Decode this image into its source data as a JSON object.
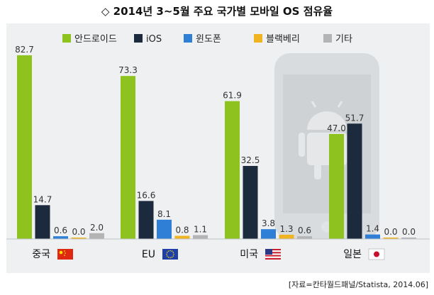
{
  "title": "◇ 2014년 3~5월 주요 국가별 모바일 OS 점유율",
  "source": "[자료=칸타월드패널/Statista, 2014.06]",
  "colors": {
    "background_panel": "#eef0f2",
    "android": "#8dc21f",
    "ios": "#1b2a3d",
    "windows": "#2f7fd6",
    "blackberry": "#f0b423",
    "other": "#b4b4b4"
  },
  "chart_data": {
    "type": "bar",
    "title": "2014년 3~5월 주요 국가별 모바일 OS 점유율",
    "categories": [
      "중국",
      "EU",
      "미국",
      "일본"
    ],
    "category_flags": [
      "cn-flag-icon",
      "eu-flag-icon",
      "us-flag-icon",
      "jp-flag-icon"
    ],
    "series": [
      {
        "name": "안드로이드",
        "color": "#8dc21f",
        "values": [
          82.7,
          73.3,
          61.9,
          47.0
        ]
      },
      {
        "name": "iOS",
        "color": "#1b2a3d",
        "values": [
          14.7,
          16.6,
          32.5,
          51.7
        ]
      },
      {
        "name": "윈도폰",
        "color": "#2f7fd6",
        "values": [
          0.6,
          8.1,
          3.8,
          1.4
        ]
      },
      {
        "name": "블랙베리",
        "color": "#f0b423",
        "values": [
          0.0,
          0.8,
          1.3,
          0.0
        ]
      },
      {
        "name": "기타",
        "color": "#b4b4b4",
        "values": [
          2.0,
          1.1,
          0.6,
          0.0
        ]
      }
    ],
    "value_labels": [
      [
        "82.7",
        "14.7",
        "0.6",
        "0.0",
        "2.0"
      ],
      [
        "73.3",
        "16.6",
        "8.1",
        "0.8",
        "1.1"
      ],
      [
        "61.9",
        "32.5",
        "3.8",
        "1.3",
        "0.6"
      ],
      [
        "47.0",
        "51.7",
        "1.4",
        "0.0",
        "0.0"
      ]
    ],
    "ylim": [
      0,
      85
    ],
    "grid": false,
    "legend_position": "top",
    "xlabel": "",
    "ylabel": ""
  }
}
